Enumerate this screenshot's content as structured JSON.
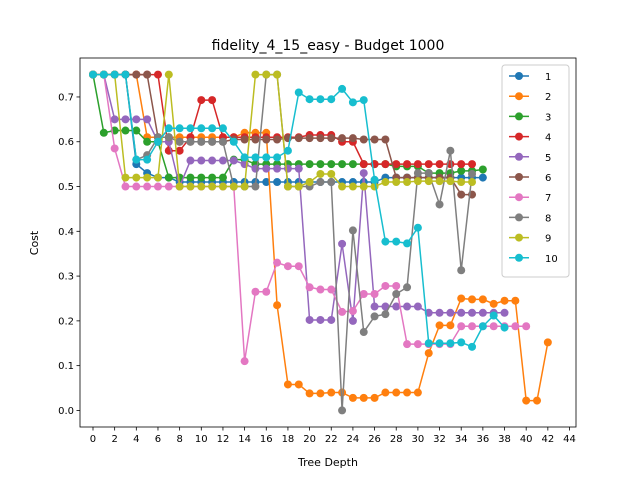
{
  "chart_data": {
    "type": "line",
    "title": "fidelity_4_15_easy - Budget  1000",
    "xlabel": "Tree Depth",
    "ylabel": "Cost",
    "xlim": [
      -1.2,
      44.6
    ],
    "ylim": [
      -0.037,
      0.787
    ],
    "xticks": [
      "0",
      "2",
      "4",
      "6",
      "8",
      "10",
      "12",
      "14",
      "16",
      "18",
      "20",
      "22",
      "24",
      "26",
      "28",
      "30",
      "32",
      "34",
      "36",
      "38",
      "40",
      "42",
      "44"
    ],
    "yticks": [
      "0.0",
      "0.1",
      "0.2",
      "0.3",
      "0.4",
      "0.5",
      "0.6",
      "0.7"
    ],
    "grid": false,
    "legend_position": "top-right",
    "series": [
      {
        "name": "1",
        "color": "#1f77b4",
        "x": [
          0,
          1,
          2,
          3,
          4,
          5,
          6,
          7,
          8,
          9,
          10,
          11,
          12,
          13,
          14,
          15,
          16,
          17,
          18,
          19,
          20,
          21,
          22,
          23,
          24,
          25,
          26,
          27,
          28,
          29,
          30,
          31,
          32,
          33,
          34,
          35,
          36
        ],
        "y": [
          0.75,
          0.75,
          0.75,
          0.75,
          0.55,
          0.53,
          0.52,
          0.52,
          0.51,
          0.51,
          0.51,
          0.51,
          0.51,
          0.51,
          0.51,
          0.51,
          0.51,
          0.51,
          0.51,
          0.51,
          0.51,
          0.51,
          0.51,
          0.51,
          0.51,
          0.51,
          0.51,
          0.52,
          0.52,
          0.52,
          0.52,
          0.52,
          0.52,
          0.52,
          0.52,
          0.52,
          0.52
        ]
      },
      {
        "name": "2",
        "color": "#ff7f0e",
        "x": [
          0,
          1,
          2,
          3,
          4,
          5,
          6,
          7,
          8,
          9,
          10,
          11,
          12,
          13,
          14,
          15,
          16,
          17,
          18,
          19,
          20,
          21,
          22,
          23,
          24,
          25,
          26,
          27,
          28,
          29,
          30,
          31,
          32,
          33,
          34,
          35,
          36,
          37,
          38,
          39,
          40,
          41,
          42
        ],
        "y": [
          0.75,
          0.75,
          0.75,
          0.75,
          0.75,
          0.61,
          0.61,
          0.61,
          0.61,
          0.61,
          0.61,
          0.61,
          0.61,
          0.61,
          0.62,
          0.62,
          0.62,
          0.235,
          0.058,
          0.058,
          0.038,
          0.038,
          0.04,
          0.04,
          0.028,
          0.028,
          0.028,
          0.04,
          0.04,
          0.04,
          0.04,
          0.128,
          0.19,
          0.19,
          0.25,
          0.248,
          0.248,
          0.238,
          0.245,
          0.245,
          0.022,
          0.022,
          0.152
        ]
      },
      {
        "name": "3",
        "color": "#2ca02c",
        "x": [
          0,
          1,
          2,
          3,
          4,
          5,
          6,
          7,
          8,
          9,
          10,
          11,
          12,
          13,
          14,
          15,
          16,
          17,
          18,
          19,
          20,
          21,
          22,
          23,
          24,
          25,
          26,
          27,
          28,
          29,
          30,
          31,
          32,
          33,
          34,
          35,
          36
        ],
        "y": [
          0.75,
          0.62,
          0.625,
          0.625,
          0.625,
          0.6,
          0.6,
          0.52,
          0.52,
          0.52,
          0.52,
          0.52,
          0.52,
          0.56,
          0.56,
          0.55,
          0.55,
          0.55,
          0.55,
          0.55,
          0.55,
          0.55,
          0.55,
          0.55,
          0.55,
          0.55,
          0.55,
          0.55,
          0.545,
          0.545,
          0.545,
          0.53,
          0.53,
          0.53,
          0.535,
          0.535,
          0.538
        ]
      },
      {
        "name": "4",
        "color": "#d62728",
        "x": [
          0,
          1,
          2,
          3,
          4,
          5,
          6,
          7,
          8,
          9,
          10,
          11,
          12,
          13,
          14,
          15,
          16,
          17,
          18,
          19,
          20,
          21,
          22,
          23,
          24,
          25,
          26,
          27,
          28,
          29,
          30,
          31,
          32,
          33,
          34,
          35
        ],
        "y": [
          0.75,
          0.75,
          0.75,
          0.75,
          0.75,
          0.75,
          0.75,
          0.58,
          0.58,
          0.61,
          0.693,
          0.693,
          0.61,
          0.61,
          0.61,
          0.61,
          0.61,
          0.61,
          0.61,
          0.61,
          0.615,
          0.615,
          0.615,
          0.6,
          0.6,
          0.55,
          0.55,
          0.55,
          0.55,
          0.55,
          0.55,
          0.55,
          0.55,
          0.55,
          0.55,
          0.55
        ]
      },
      {
        "name": "5",
        "color": "#9467bd",
        "x": [
          0,
          1,
          2,
          3,
          4,
          5,
          6,
          7,
          8,
          9,
          10,
          11,
          12,
          13,
          14,
          15,
          16,
          17,
          18,
          19,
          20,
          21,
          22,
          23,
          24,
          25,
          26,
          27,
          28,
          29,
          30,
          31,
          32,
          33,
          34,
          35,
          36,
          37,
          38
        ],
        "y": [
          0.75,
          0.75,
          0.65,
          0.65,
          0.65,
          0.65,
          0.6,
          0.6,
          0.5,
          0.558,
          0.558,
          0.558,
          0.558,
          0.558,
          0.55,
          0.54,
          0.54,
          0.54,
          0.54,
          0.54,
          0.202,
          0.202,
          0.202,
          0.372,
          0.2,
          0.53,
          0.232,
          0.232,
          0.232,
          0.232,
          0.232,
          0.218,
          0.218,
          0.218,
          0.218,
          0.218,
          0.218,
          0.218,
          0.218
        ]
      },
      {
        "name": "6",
        "color": "#8c564b",
        "x": [
          0,
          1,
          2,
          3,
          4,
          5,
          6,
          7,
          8,
          9,
          10,
          11,
          12,
          13,
          14,
          15,
          16,
          17,
          18,
          19,
          20,
          21,
          22,
          23,
          24,
          25,
          26,
          27,
          28,
          29,
          30,
          31,
          32,
          33,
          34,
          35
        ],
        "y": [
          0.75,
          0.75,
          0.75,
          0.75,
          0.75,
          0.75,
          0.61,
          0.61,
          0.6,
          0.6,
          0.6,
          0.6,
          0.6,
          0.605,
          0.605,
          0.605,
          0.605,
          0.605,
          0.608,
          0.608,
          0.608,
          0.608,
          0.608,
          0.608,
          0.608,
          0.605,
          0.605,
          0.605,
          0.52,
          0.52,
          0.52,
          0.52,
          0.52,
          0.52,
          0.482,
          0.482
        ]
      },
      {
        "name": "7",
        "color": "#e377c2",
        "x": [
          0,
          1,
          2,
          3,
          4,
          5,
          6,
          7,
          8,
          9,
          10,
          11,
          12,
          13,
          14,
          15,
          16,
          17,
          18,
          19,
          20,
          21,
          22,
          23,
          24,
          25,
          26,
          27,
          28,
          29,
          30,
          31,
          32,
          33,
          34,
          35,
          36,
          37,
          38,
          39,
          40
        ],
        "y": [
          0.75,
          0.75,
          0.585,
          0.5,
          0.5,
          0.5,
          0.5,
          0.5,
          0.5,
          0.5,
          0.5,
          0.5,
          0.5,
          0.5,
          0.11,
          0.265,
          0.265,
          0.33,
          0.322,
          0.322,
          0.275,
          0.27,
          0.27,
          0.22,
          0.222,
          0.26,
          0.26,
          0.278,
          0.278,
          0.148,
          0.148,
          0.148,
          0.148,
          0.148,
          0.188,
          0.188,
          0.188,
          0.188,
          0.188,
          0.188,
          0.188
        ]
      },
      {
        "name": "8",
        "color": "#7f7f7f",
        "x": [
          0,
          1,
          2,
          3,
          4,
          5,
          6,
          7,
          8,
          9,
          10,
          11,
          12,
          13,
          14,
          15,
          16,
          17,
          18,
          19,
          20,
          21,
          22,
          23,
          24,
          25,
          26,
          27,
          28,
          29,
          30,
          31,
          32,
          33,
          34,
          35
        ],
        "y": [
          0.75,
          0.75,
          0.75,
          0.75,
          0.56,
          0.57,
          0.61,
          0.61,
          0.6,
          0.6,
          0.6,
          0.6,
          0.6,
          0.5,
          0.5,
          0.5,
          0.75,
          0.75,
          0.5,
          0.5,
          0.5,
          0.51,
          0.51,
          0.0,
          0.402,
          0.175,
          0.21,
          0.215,
          0.26,
          0.275,
          0.53,
          0.53,
          0.46,
          0.58,
          0.313,
          0.528
        ]
      },
      {
        "name": "9",
        "color": "#bcbd22",
        "x": [
          0,
          1,
          2,
          3,
          4,
          5,
          6,
          7,
          8,
          9,
          10,
          11,
          12,
          13,
          14,
          15,
          16,
          17,
          18,
          19,
          20,
          21,
          22,
          23,
          24,
          25,
          26,
          27,
          28,
          29,
          30,
          31,
          32,
          33,
          34,
          35
        ],
        "y": [
          0.75,
          0.75,
          0.75,
          0.52,
          0.52,
          0.52,
          0.52,
          0.75,
          0.5,
          0.5,
          0.5,
          0.5,
          0.5,
          0.5,
          0.5,
          0.75,
          0.75,
          0.75,
          0.5,
          0.5,
          0.51,
          0.528,
          0.528,
          0.5,
          0.5,
          0.5,
          0.5,
          0.51,
          0.51,
          0.51,
          0.512,
          0.512,
          0.512,
          0.512,
          0.51,
          0.51
        ]
      },
      {
        "name": "10",
        "color": "#17becf",
        "x": [
          0,
          1,
          2,
          3,
          4,
          5,
          6,
          7,
          8,
          9,
          10,
          11,
          12,
          13,
          14,
          15,
          16,
          17,
          18,
          19,
          20,
          21,
          22,
          23,
          24,
          25,
          26,
          27,
          28,
          29,
          30,
          31,
          32,
          33,
          34,
          35,
          36,
          37,
          38
        ],
        "y": [
          0.75,
          0.75,
          0.75,
          0.75,
          0.56,
          0.56,
          0.6,
          0.63,
          0.63,
          0.63,
          0.63,
          0.63,
          0.63,
          0.6,
          0.565,
          0.565,
          0.565,
          0.565,
          0.58,
          0.71,
          0.695,
          0.695,
          0.695,
          0.718,
          0.688,
          0.693,
          0.515,
          0.377,
          0.377,
          0.373,
          0.408,
          0.15,
          0.15,
          0.15,
          0.152,
          0.142,
          0.188,
          0.212,
          0.185
        ]
      }
    ]
  }
}
